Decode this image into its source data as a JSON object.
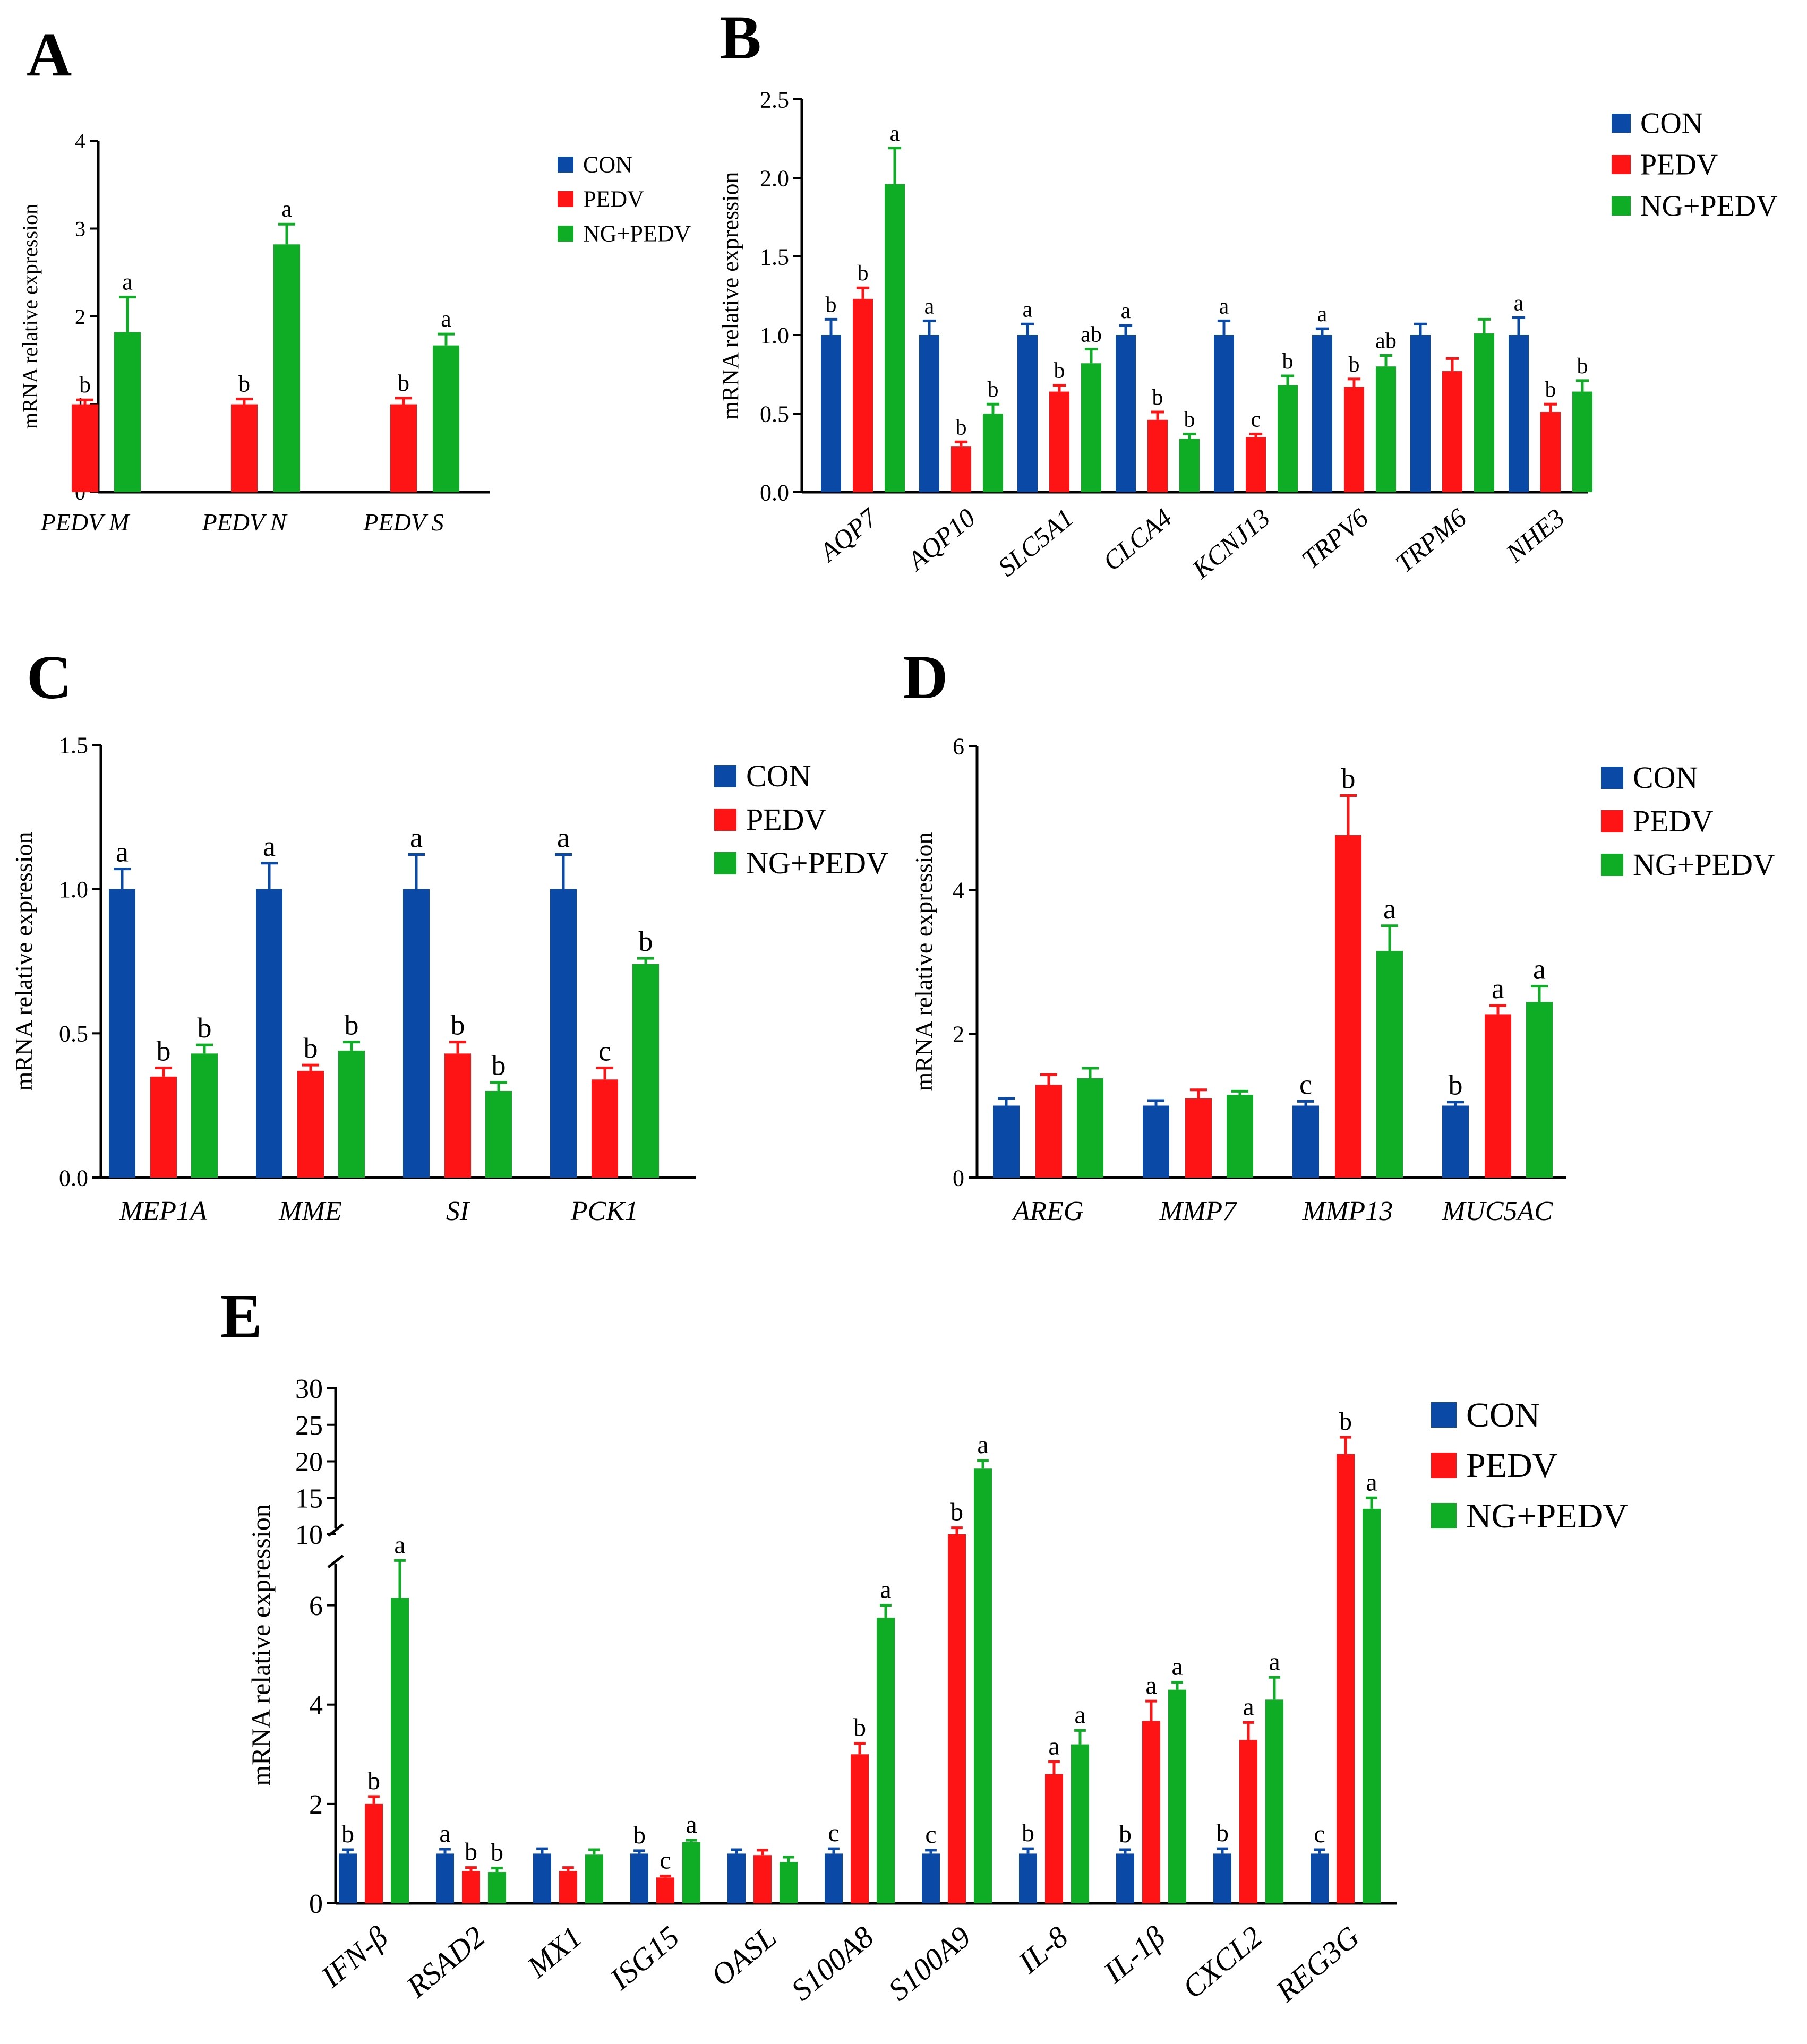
{
  "legend": {
    "con": "CON",
    "pedv": "PEDV",
    "ngpedv": "NG+PEDV"
  },
  "colors": {
    "con": "#0a4aa6",
    "pedv": "#fe1414",
    "ngpedv": "#0fad26"
  },
  "chart_data": [
    {
      "panel": "A",
      "type": "bar",
      "ylabel": "mRNA relative expression",
      "ylim": [
        0,
        4
      ],
      "yticks": [
        "0",
        "1",
        "2",
        "3",
        "4"
      ],
      "categories": [
        "PEDV M",
        "PEDV N",
        "PEDV S"
      ],
      "series": [
        {
          "name": "CON",
          "values": [
            0,
            0,
            0
          ],
          "errors": [
            0,
            0,
            0
          ],
          "labels": [
            "",
            "",
            ""
          ]
        },
        {
          "name": "PEDV",
          "values": [
            1.0,
            1.0,
            1.0
          ],
          "errors": [
            0.05,
            0.06,
            0.07
          ],
          "labels": [
            "b",
            "b",
            "b"
          ]
        },
        {
          "name": "NG+PEDV",
          "values": [
            1.82,
            2.82,
            1.67
          ],
          "errors": [
            0.4,
            0.23,
            0.13
          ],
          "labels": [
            "a",
            "a",
            "a"
          ]
        }
      ]
    },
    {
      "panel": "B",
      "type": "bar",
      "ylabel": "mRNA relative expression",
      "ylim": [
        0,
        2.5
      ],
      "yticks": [
        "0.0",
        "0.5",
        "1.0",
        "1.5",
        "2.0",
        "2.5"
      ],
      "categories": [
        "AQP7",
        "AQP10",
        "SLC5A1",
        "CLCA4",
        "KCNJ13",
        "TRPV6",
        "TRPM6",
        "NHE3"
      ],
      "series": [
        {
          "name": "CON",
          "values": [
            1.0,
            1.0,
            1.0,
            1.0,
            1.0,
            1.0,
            1.0,
            1.0
          ],
          "errors": [
            0.1,
            0.09,
            0.07,
            0.06,
            0.09,
            0.04,
            0.07,
            0.11
          ],
          "labels": [
            "b",
            "a",
            "a",
            "a",
            "a",
            "a",
            "",
            "a"
          ]
        },
        {
          "name": "PEDV",
          "values": [
            1.23,
            0.29,
            0.64,
            0.46,
            0.35,
            0.67,
            0.77,
            0.51
          ],
          "errors": [
            0.07,
            0.03,
            0.04,
            0.05,
            0.02,
            0.05,
            0.08,
            0.05
          ],
          "labels": [
            "b",
            "b",
            "b",
            "b",
            "c",
            "b",
            "",
            "b"
          ]
        },
        {
          "name": "NG+PEDV",
          "values": [
            1.96,
            0.5,
            0.82,
            0.34,
            0.68,
            0.8,
            1.01,
            0.64
          ],
          "errors": [
            0.23,
            0.06,
            0.09,
            0.03,
            0.06,
            0.07,
            0.09,
            0.07
          ],
          "labels": [
            "a",
            "b",
            "ab",
            "b",
            "b",
            "ab",
            "",
            "b"
          ]
        }
      ]
    },
    {
      "panel": "C",
      "type": "bar",
      "ylabel": "mRNA relative expression",
      "ylim": [
        0,
        1.5
      ],
      "yticks": [
        "0.0",
        "0.5",
        "1.0",
        "1.5"
      ],
      "categories": [
        "MEP1A",
        "MME",
        "SI",
        "PCK1"
      ],
      "series": [
        {
          "name": "CON",
          "values": [
            1.0,
            1.0,
            1.0,
            1.0
          ],
          "errors": [
            0.07,
            0.09,
            0.12,
            0.12
          ],
          "labels": [
            "a",
            "a",
            "a",
            "a"
          ]
        },
        {
          "name": "PEDV",
          "values": [
            0.35,
            0.37,
            0.43,
            0.34
          ],
          "errors": [
            0.03,
            0.02,
            0.04,
            0.04
          ],
          "labels": [
            "b",
            "b",
            "b",
            "c"
          ]
        },
        {
          "name": "NG+PEDV",
          "values": [
            0.43,
            0.44,
            0.3,
            0.74
          ],
          "errors": [
            0.03,
            0.03,
            0.03,
            0.02
          ],
          "labels": [
            "b",
            "b",
            "b",
            "b"
          ]
        }
      ]
    },
    {
      "panel": "D",
      "type": "bar",
      "ylabel": "mRNA relative expression",
      "ylim": [
        0,
        6
      ],
      "yticks": [
        "0",
        "2",
        "4",
        "6"
      ],
      "categories": [
        "AREG",
        "MMP7",
        "MMP13",
        "MUC5AC"
      ],
      "series": [
        {
          "name": "CON",
          "values": [
            1.0,
            1.0,
            1.0,
            1.0
          ],
          "errors": [
            0.1,
            0.07,
            0.06,
            0.05
          ],
          "labels": [
            "",
            "",
            "c",
            "b"
          ]
        },
        {
          "name": "PEDV",
          "values": [
            1.29,
            1.1,
            4.76,
            2.27
          ],
          "errors": [
            0.14,
            0.12,
            0.55,
            0.12
          ],
          "labels": [
            "",
            "",
            "b",
            "a"
          ]
        },
        {
          "name": "NG+PEDV",
          "values": [
            1.38,
            1.15,
            3.15,
            2.44
          ],
          "errors": [
            0.14,
            0.05,
            0.35,
            0.22
          ],
          "labels": [
            "",
            "",
            "a",
            "a"
          ]
        }
      ]
    },
    {
      "panel": "E",
      "type": "bar",
      "ylabel": "mRNA relative expression",
      "ylim": [
        0,
        30
      ],
      "axis_break": [
        7,
        9
      ],
      "yticks": [
        "0",
        "2",
        "4",
        "6",
        "10",
        "15",
        "20",
        "25",
        "30"
      ],
      "categories": [
        "IFN-β",
        "RSAD2",
        "MX1",
        "ISG15",
        "OASL",
        "S100A8",
        "S100A9",
        "IL-8",
        "IL-1β",
        "CXCL2",
        "REG3G"
      ],
      "series": [
        {
          "name": "CON",
          "values": [
            1.0,
            1.0,
            1.0,
            1.0,
            1.0,
            1.0,
            1.0,
            1.0,
            1.0,
            1.0,
            1.0
          ],
          "errors": [
            0.08,
            0.09,
            0.1,
            0.06,
            0.08,
            0.1,
            0.07,
            0.1,
            0.08,
            0.1,
            0.08
          ],
          "labels": [
            "b",
            "a",
            "",
            "b",
            "",
            "c",
            "c",
            "b",
            "b",
            "b",
            "c"
          ]
        },
        {
          "name": "PEDV",
          "values": [
            2.0,
            0.65,
            0.65,
            0.52,
            0.97,
            3.0,
            10.0,
            2.6,
            3.67,
            3.29,
            21.0
          ],
          "errors": [
            0.15,
            0.07,
            0.07,
            0.03,
            0.1,
            0.22,
            0.9,
            0.25,
            0.4,
            0.35,
            2.3
          ],
          "labels": [
            "b",
            "b",
            "",
            "c",
            "",
            "b",
            "b",
            "a",
            "a",
            "a",
            "b"
          ]
        },
        {
          "name": "NG+PEDV",
          "values": [
            6.15,
            0.63,
            0.98,
            1.23,
            0.83,
            5.75,
            19.0,
            3.2,
            4.3,
            4.1,
            13.5
          ],
          "errors": [
            0.75,
            0.08,
            0.1,
            0.04,
            0.1,
            0.25,
            1.1,
            0.28,
            0.15,
            0.45,
            1.5
          ],
          "labels": [
            "a",
            "b",
            "",
            "a",
            "",
            "a",
            "a",
            "a",
            "a",
            "a",
            "a"
          ]
        }
      ]
    }
  ]
}
